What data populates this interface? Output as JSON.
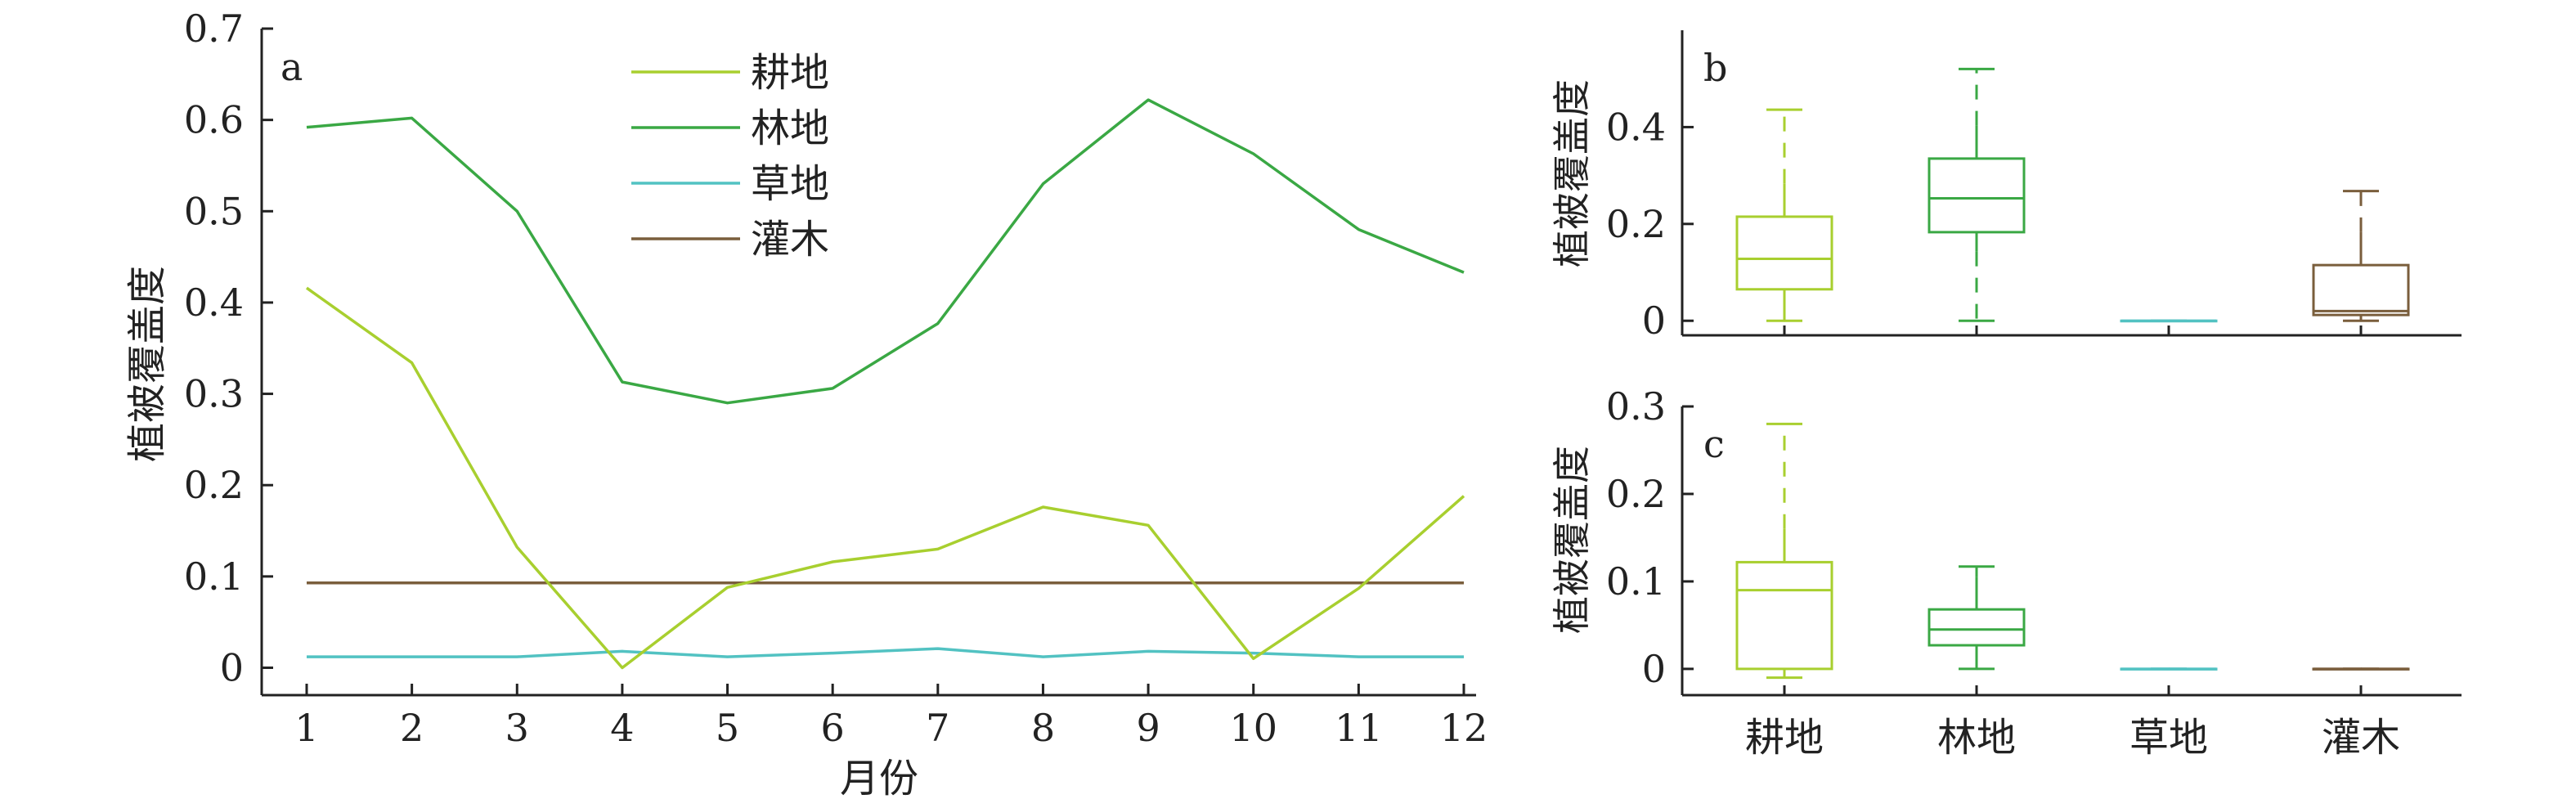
{
  "colors": {
    "耕地": "#a8cf2f",
    "林地": "#3aa844",
    "草地": "#52c2c2",
    "灌木": "#7a5e3c",
    "axis": "#222222"
  },
  "chart_data": [
    {
      "panel": "a",
      "type": "line",
      "xlabel": "月份",
      "ylabel": "植被覆盖度",
      "xlim": [
        0.8,
        12
      ],
      "ylim": [
        -0.03,
        0.7
      ],
      "x": [
        1,
        2,
        3,
        4,
        5,
        6,
        7,
        8,
        9,
        10,
        11,
        12
      ],
      "x_ticks": [
        "1",
        "2",
        "3",
        "4",
        "5",
        "6",
        "7",
        "8",
        "9",
        "10",
        "11",
        "12"
      ],
      "y_ticks": [
        {
          "value": 0,
          "label": "0"
        },
        {
          "value": 0.1,
          "label": "0.1"
        },
        {
          "value": 0.2,
          "label": "0.2"
        },
        {
          "value": 0.3,
          "label": "0.3"
        },
        {
          "value": 0.4,
          "label": "0.4"
        },
        {
          "value": 0.5,
          "label": "0.5"
        },
        {
          "value": 0.6,
          "label": "0.6"
        },
        {
          "value": 0.7,
          "label": "0.7"
        }
      ],
      "legend_position": "top-center",
      "series": [
        {
          "name": "耕地",
          "values": [
            0.416,
            0.334,
            0.132,
            0.0,
            0.088,
            0.116,
            0.13,
            0.176,
            0.156,
            0.01,
            0.087,
            0.188
          ]
        },
        {
          "name": "林地",
          "values": [
            0.592,
            0.602,
            0.5,
            0.313,
            0.29,
            0.306,
            0.377,
            0.53,
            0.622,
            0.563,
            0.48,
            0.433
          ]
        },
        {
          "name": "草地",
          "values": [
            0.012,
            0.012,
            0.012,
            0.018,
            0.012,
            0.016,
            0.021,
            0.012,
            0.018,
            0.016,
            0.012,
            0.012
          ]
        },
        {
          "name": "灌木",
          "values": [
            0.093,
            0.093,
            0.093,
            0.093,
            0.093,
            0.093,
            0.093,
            0.093,
            0.093,
            0.093,
            0.093,
            0.093
          ]
        }
      ]
    },
    {
      "panel": "b",
      "type": "box",
      "ylabel": "植被覆盖度",
      "ylim": [
        -0.03,
        0.6
      ],
      "y_ticks": [
        {
          "value": 0,
          "label": "0"
        },
        {
          "value": 0.2,
          "label": "0.2"
        },
        {
          "value": 0.4,
          "label": "0.4"
        }
      ],
      "categories": [
        "耕地",
        "林地",
        "草地",
        "灌木"
      ],
      "boxes": [
        {
          "category": "耕地",
          "whisker_low": 0.0,
          "q1": 0.065,
          "median": 0.128,
          "q3": 0.215,
          "whisker_high": 0.283,
          "cap_low": 0.0,
          "cap_high": 0.436
        },
        {
          "category": "林地",
          "whisker_low": 0.143,
          "q1": 0.183,
          "median": 0.253,
          "q3": 0.335,
          "whisker_high": 0.403,
          "cap_low": 0.0,
          "cap_high": 0.52
        },
        {
          "category": "草地",
          "whisker_low": 0.0,
          "q1": 0.0,
          "median": 0.0,
          "q3": 0.0,
          "whisker_high": 0.0,
          "cap_low": 0.0,
          "cap_high": 0.0
        },
        {
          "category": "灌木",
          "whisker_low": 0.012,
          "q1": 0.012,
          "median": 0.02,
          "q3": 0.115,
          "whisker_high": 0.183,
          "cap_low": 0.0,
          "cap_high": 0.268
        }
      ]
    },
    {
      "panel": "c",
      "type": "box",
      "ylabel": "植被覆盖度",
      "ylim": [
        -0.03,
        0.3
      ],
      "y_ticks": [
        {
          "value": 0,
          "label": "0"
        },
        {
          "value": 0.1,
          "label": "0.1"
        },
        {
          "value": 0.2,
          "label": "0.2"
        },
        {
          "value": 0.3,
          "label": "0.3"
        }
      ],
      "categories": [
        "耕地",
        "林地",
        "草地",
        "灌木"
      ],
      "boxes": [
        {
          "category": "耕地",
          "whisker_low": 0.0,
          "q1": 0.0,
          "median": 0.09,
          "q3": 0.122,
          "whisker_high": 0.16,
          "cap_low": -0.01,
          "cap_high": 0.28
        },
        {
          "category": "林地",
          "whisker_low": 0.0,
          "q1": 0.027,
          "median": 0.045,
          "q3": 0.068,
          "whisker_high": 0.105,
          "cap_low": 0.0,
          "cap_high": 0.117
        },
        {
          "category": "草地",
          "whisker_low": 0.0,
          "q1": 0.0,
          "median": 0.0,
          "q3": 0.0,
          "whisker_high": 0.0,
          "cap_low": 0.0,
          "cap_high": 0.0
        },
        {
          "category": "灌木",
          "whisker_low": 0.0,
          "q1": 0.0,
          "median": 0.0,
          "q3": 0.0,
          "whisker_high": 0.0,
          "cap_low": 0.0,
          "cap_high": 0.0
        }
      ]
    }
  ]
}
